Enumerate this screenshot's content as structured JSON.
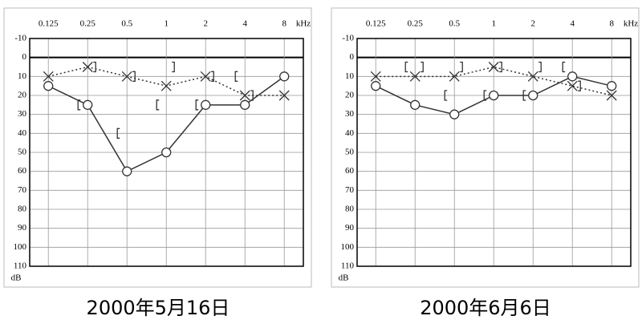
{
  "chart_data": [
    {
      "type": "audiogram",
      "title": "2000年5月16日",
      "xlabel": "kHz",
      "ylabel": "dB",
      "x": [
        0.125,
        0.25,
        0.5,
        1,
        2,
        4,
        8
      ],
      "xscale": "log",
      "xlim": [
        0.09,
        11.2
      ],
      "xticks": [
        0.125,
        0.25,
        0.5,
        1,
        2,
        4,
        8
      ],
      "ylim": [
        -10,
        110
      ],
      "y_inverted": true,
      "yticks": [
        -10,
        0,
        10,
        20,
        30,
        40,
        50,
        60,
        70,
        80,
        90,
        100,
        110
      ],
      "grid": true,
      "series": [
        {
          "marker": "circle",
          "line": "solid",
          "color": "#333333",
          "values": [
            15,
            25,
            60,
            50,
            25,
            25,
            10
          ]
        },
        {
          "marker": "cross",
          "line": "dotted",
          "color": "#333333",
          "values": [
            10,
            5,
            10,
            15,
            10,
            20,
            20
          ]
        },
        {
          "marker": "left-bracket",
          "line": "none",
          "color": "#333333",
          "values": [
            null,
            25,
            40,
            25,
            25,
            10,
            null
          ]
        },
        {
          "marker": "right-bracket",
          "line": "none",
          "color": "#333333",
          "values": [
            null,
            5,
            10,
            5,
            10,
            20,
            null
          ]
        }
      ]
    },
    {
      "type": "audiogram",
      "title": "2000年6月6日",
      "xlabel": "kHz",
      "ylabel": "dB",
      "x": [
        0.125,
        0.25,
        0.5,
        1,
        2,
        4,
        8
      ],
      "xscale": "log",
      "xlim": [
        0.09,
        11.2
      ],
      "xticks": [
        0.125,
        0.25,
        0.5,
        1,
        2,
        4,
        8
      ],
      "ylim": [
        -10,
        110
      ],
      "y_inverted": true,
      "yticks": [
        -10,
        0,
        10,
        20,
        30,
        40,
        50,
        60,
        70,
        80,
        90,
        100,
        110
      ],
      "grid": true,
      "series": [
        {
          "marker": "circle",
          "line": "solid",
          "color": "#333333",
          "values": [
            15,
            25,
            30,
            20,
            20,
            10,
            15
          ]
        },
        {
          "marker": "cross",
          "line": "dotted",
          "color": "#333333",
          "values": [
            10,
            10,
            10,
            5,
            10,
            15,
            20
          ]
        },
        {
          "marker": "left-bracket",
          "line": "none",
          "color": "#333333",
          "values": [
            null,
            5,
            20,
            20,
            20,
            5,
            null
          ]
        },
        {
          "marker": "right-bracket",
          "line": "none",
          "color": "#333333",
          "values": [
            null,
            5,
            5,
            5,
            5,
            15,
            null
          ]
        }
      ]
    }
  ]
}
